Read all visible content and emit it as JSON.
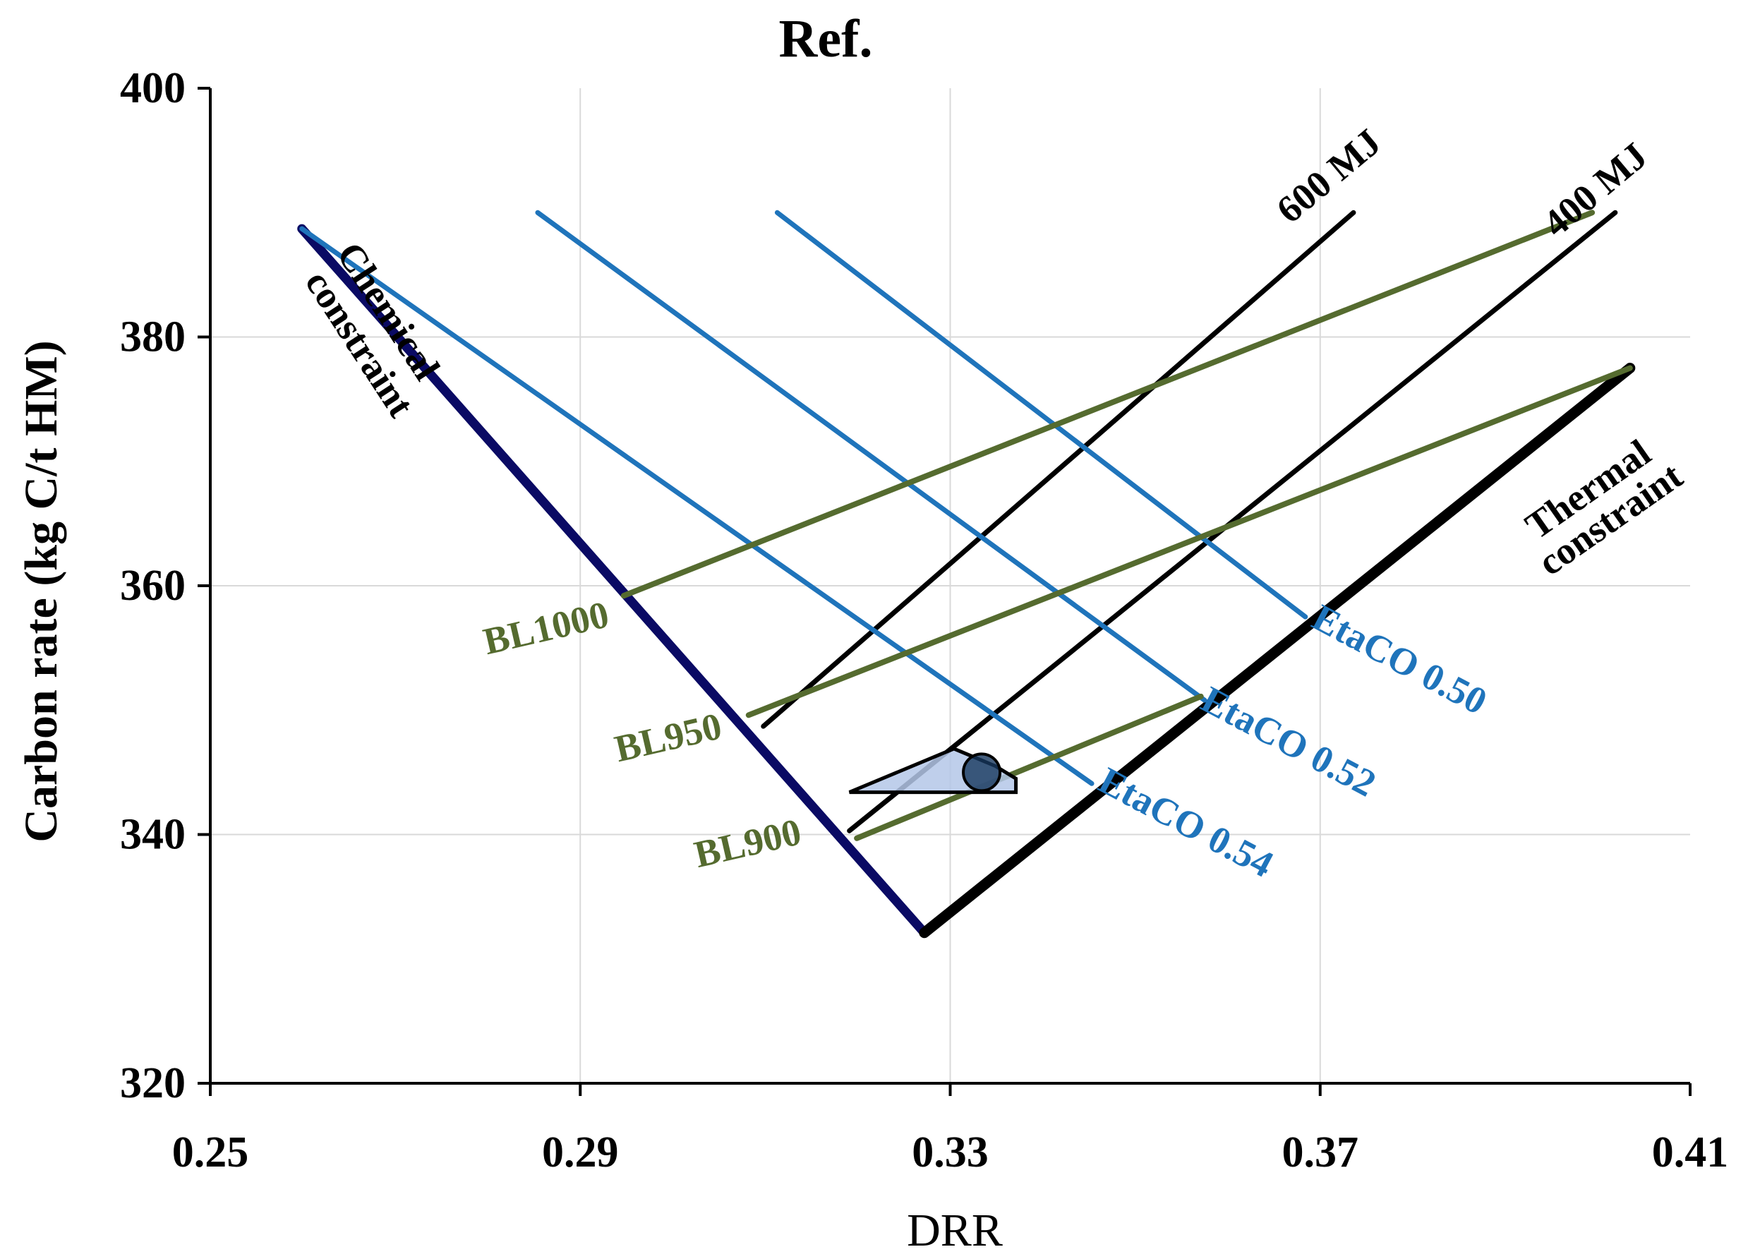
{
  "chart_data": {
    "type": "line",
    "title": "Ref.",
    "xlabel": "DRR",
    "ylabel": "Carbon rate (kg C/t HM)",
    "xlim": [
      0.25,
      0.41
    ],
    "ylim": [
      320,
      400
    ],
    "xticks": [
      "0.25",
      "0.29",
      "0.33",
      "0.37",
      "0.41"
    ],
    "yticks": [
      "320",
      "340",
      "360",
      "380",
      "400"
    ],
    "grid": true,
    "colors": {
      "chemical": "#0a0a64",
      "thermal": "#000000",
      "energy": "#000000",
      "etaco": "#1f74bb",
      "blast": "#556b2f",
      "region_fill": "#b4c7e7",
      "point": "#17375e"
    },
    "series": [
      {
        "name": "Chemical constraint",
        "kind": "chemical",
        "x": [
          0.2599,
          0.3272
        ],
        "y": [
          388.7,
          332.1
        ]
      },
      {
        "name": "Thermal constraint",
        "kind": "thermal",
        "x": [
          0.3272,
          0.4035
        ],
        "y": [
          332.1,
          377.5
        ]
      },
      {
        "name": "600 MJ",
        "kind": "energy",
        "x": [
          0.3098,
          0.3736
        ],
        "y": [
          348.7,
          390.0
        ]
      },
      {
        "name": "400 MJ",
        "kind": "energy",
        "x": [
          0.3191,
          0.4019
        ],
        "y": [
          340.3,
          390.0
        ]
      },
      {
        "name": "EtaCO 0.50",
        "kind": "etaco",
        "x": [
          0.3113,
          0.3684
        ],
        "y": [
          390.0,
          357.5
        ]
      },
      {
        "name": "EtaCO 0.52",
        "kind": "etaco",
        "x": [
          0.2854,
          0.3575
        ],
        "y": [
          390.0,
          350.8
        ]
      },
      {
        "name": "EtaCO 0.54",
        "kind": "etaco",
        "x": [
          0.2599,
          0.3453
        ],
        "y": [
          388.7,
          344.1
        ]
      },
      {
        "name": "BL1000",
        "kind": "blast",
        "x": [
          0.2947,
          0.3994
        ],
        "y": [
          359.2,
          390.0
        ]
      },
      {
        "name": "BL950",
        "kind": "blast",
        "x": [
          0.3082,
          0.4035
        ],
        "y": [
          349.6,
          377.5
        ]
      },
      {
        "name": "BL900",
        "kind": "blast",
        "x": [
          0.3199,
          0.3571
        ],
        "y": [
          339.7,
          351.1
        ]
      }
    ],
    "operating_region": {
      "x": [
        0.3191,
        0.3304,
        0.3349,
        0.3371,
        0.3371,
        0.3191
      ],
      "y": [
        343.4,
        346.9,
        345.5,
        344.5,
        343.4,
        343.4
      ]
    },
    "operating_point": {
      "x": 0.3334,
      "y": 345.0
    },
    "annotations": [
      {
        "text": "Chemical",
        "x": 0.2689,
        "y": 381.9,
        "angle": 57,
        "color": "#000000"
      },
      {
        "text": "constraint",
        "x": 0.2658,
        "y": 379.3,
        "angle": 57,
        "color": "#000000"
      },
      {
        "text": "Thermal",
        "x": 0.3992,
        "y": 367.5,
        "angle": -35,
        "color": "#000000"
      },
      {
        "text": "constraint",
        "x": 0.4016,
        "y": 365.1,
        "angle": -35,
        "color": "#000000"
      },
      {
        "text": "600 MJ",
        "x": 0.3712,
        "y": 392.7,
        "angle": -40,
        "color": "#000000"
      },
      {
        "text": "400 MJ",
        "x": 0.4,
        "y": 391.6,
        "angle": -40,
        "color": "#000000"
      },
      {
        "text": "EtaCO 0.50",
        "x": 0.3784,
        "y": 353.8,
        "angle": 28,
        "color": "#1f74bb"
      },
      {
        "text": "EtaCO 0.52",
        "x": 0.3664,
        "y": 347.2,
        "angle": 28,
        "color": "#1f74bb"
      },
      {
        "text": "EtaCO 0.54",
        "x": 0.3553,
        "y": 340.7,
        "angle": 28,
        "color": "#1f74bb"
      },
      {
        "text": "BL1000",
        "x": 0.2864,
        "y": 356.3,
        "angle": -13,
        "color": "#556b2f"
      },
      {
        "text": "BL950",
        "x": 0.2996,
        "y": 347.5,
        "angle": -13,
        "color": "#556b2f"
      },
      {
        "text": "BL900",
        "x": 0.3082,
        "y": 339.0,
        "angle": -13,
        "color": "#556b2f"
      }
    ]
  }
}
